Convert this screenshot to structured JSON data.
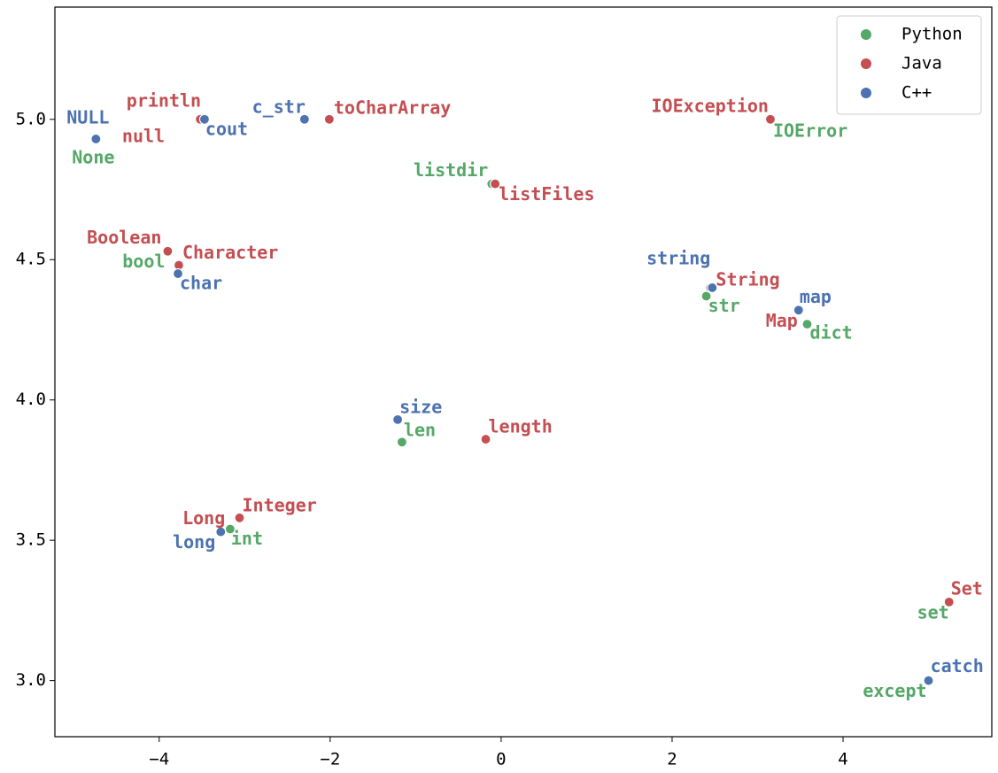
{
  "chart_data": {
    "type": "scatter",
    "xlim": [
      -5.22,
      5.74
    ],
    "ylim": [
      2.8,
      5.4
    ],
    "xticks": [
      {
        "value": -4,
        "label": "−4"
      },
      {
        "value": -2,
        "label": "−2"
      },
      0,
      2,
      4
    ],
    "yticks": [
      {
        "value": 3,
        "label": "3.0"
      },
      {
        "value": 3.5,
        "label": "3.5"
      },
      {
        "value": 4,
        "label": "4.0"
      },
      {
        "value": 4.5,
        "label": "4.5"
      },
      {
        "value": 5,
        "label": "5.0"
      }
    ],
    "legend": "upper right",
    "series": [
      {
        "name": "Python",
        "color": "#55a868",
        "labels": [
          "None",
          "listdir",
          "bool",
          "str",
          "dict",
          "len",
          "int",
          "set",
          "except",
          "IOError"
        ],
        "x": [
          -4.74,
          -0.11,
          -3.9,
          2.4,
          3.58,
          -1.16,
          -3.17,
          5.24,
          5.0,
          3.15
        ],
        "y": [
          4.93,
          4.77,
          4.53,
          4.37,
          4.27,
          3.85,
          3.54,
          3.28,
          3.0,
          5.0
        ]
      },
      {
        "name": "Java",
        "color": "#c44e52",
        "labels": [
          "println",
          "null",
          "toCharArray",
          "IOException",
          "listFiles",
          "Boolean",
          "Character",
          "String",
          "Map",
          "length",
          "Integer",
          "Long",
          "Set"
        ],
        "x": [
          -3.52,
          -3.52,
          -2.01,
          3.15,
          -0.07,
          -3.9,
          -3.77,
          2.45,
          3.48,
          -0.18,
          -3.06,
          -3.28,
          5.24
        ],
        "y": [
          5.0,
          5.0,
          5.0,
          5.0,
          4.77,
          4.53,
          4.48,
          4.4,
          4.32,
          3.86,
          3.58,
          3.53,
          3.28
        ]
      },
      {
        "name": "C++",
        "color": "#4c72b0",
        "labels": [
          "NULL",
          "cout",
          "c_str",
          "char",
          "string",
          "map",
          "size",
          "long",
          "catch"
        ],
        "x": [
          -4.74,
          -3.47,
          -2.3,
          -3.78,
          2.47,
          3.48,
          -1.21,
          -3.28,
          5.0
        ],
        "y": [
          4.93,
          5.0,
          5.0,
          4.45,
          4.4,
          4.32,
          3.93,
          3.53,
          3.0
        ]
      }
    ]
  }
}
